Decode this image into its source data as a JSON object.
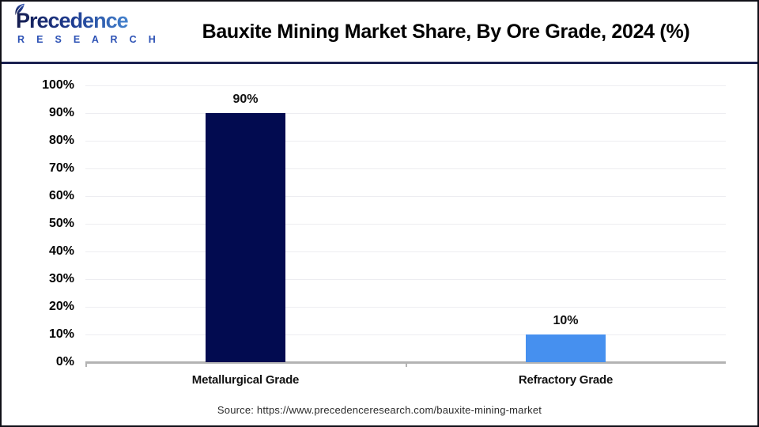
{
  "header": {
    "logo": {
      "line1": "Precedence",
      "line2": "R E S E A R C H"
    },
    "title": "Bauxite Mining Market Share, By Ore Grade, 2024 (%)"
  },
  "chart_data": {
    "type": "bar",
    "title": "Bauxite Mining Market Share, By Ore Grade, 2024 (%)",
    "categories": [
      "Metallurgical Grade",
      "Refractory Grade"
    ],
    "values": [
      90,
      10
    ],
    "data_labels": [
      "90%",
      "10%"
    ],
    "bar_colors": [
      "#020B50",
      "#4690EF"
    ],
    "xlabel": "",
    "ylabel": "",
    "ylim": [
      0,
      100
    ],
    "yticks": [
      0,
      10,
      20,
      30,
      40,
      50,
      60,
      70,
      80,
      90,
      100
    ],
    "ytick_labels": [
      "0%",
      "10%",
      "20%",
      "30%",
      "40%",
      "50%",
      "60%",
      "70%",
      "80%",
      "90%",
      "100%"
    ],
    "grid": "horizontal",
    "legend_position": "none"
  },
  "colors": {
    "bar_metallurgical": "#020B50",
    "bar_refractory": "#4690EF",
    "header_divider": "#1b2150",
    "axis_line": "#b3b3b3",
    "gridline": "#ededf1",
    "logo_navy": "#141b4d",
    "logo_blue": "#4a8fd9"
  },
  "footer": {
    "source": "Source: https://www.precedenceresearch.com/bauxite-mining-market"
  }
}
